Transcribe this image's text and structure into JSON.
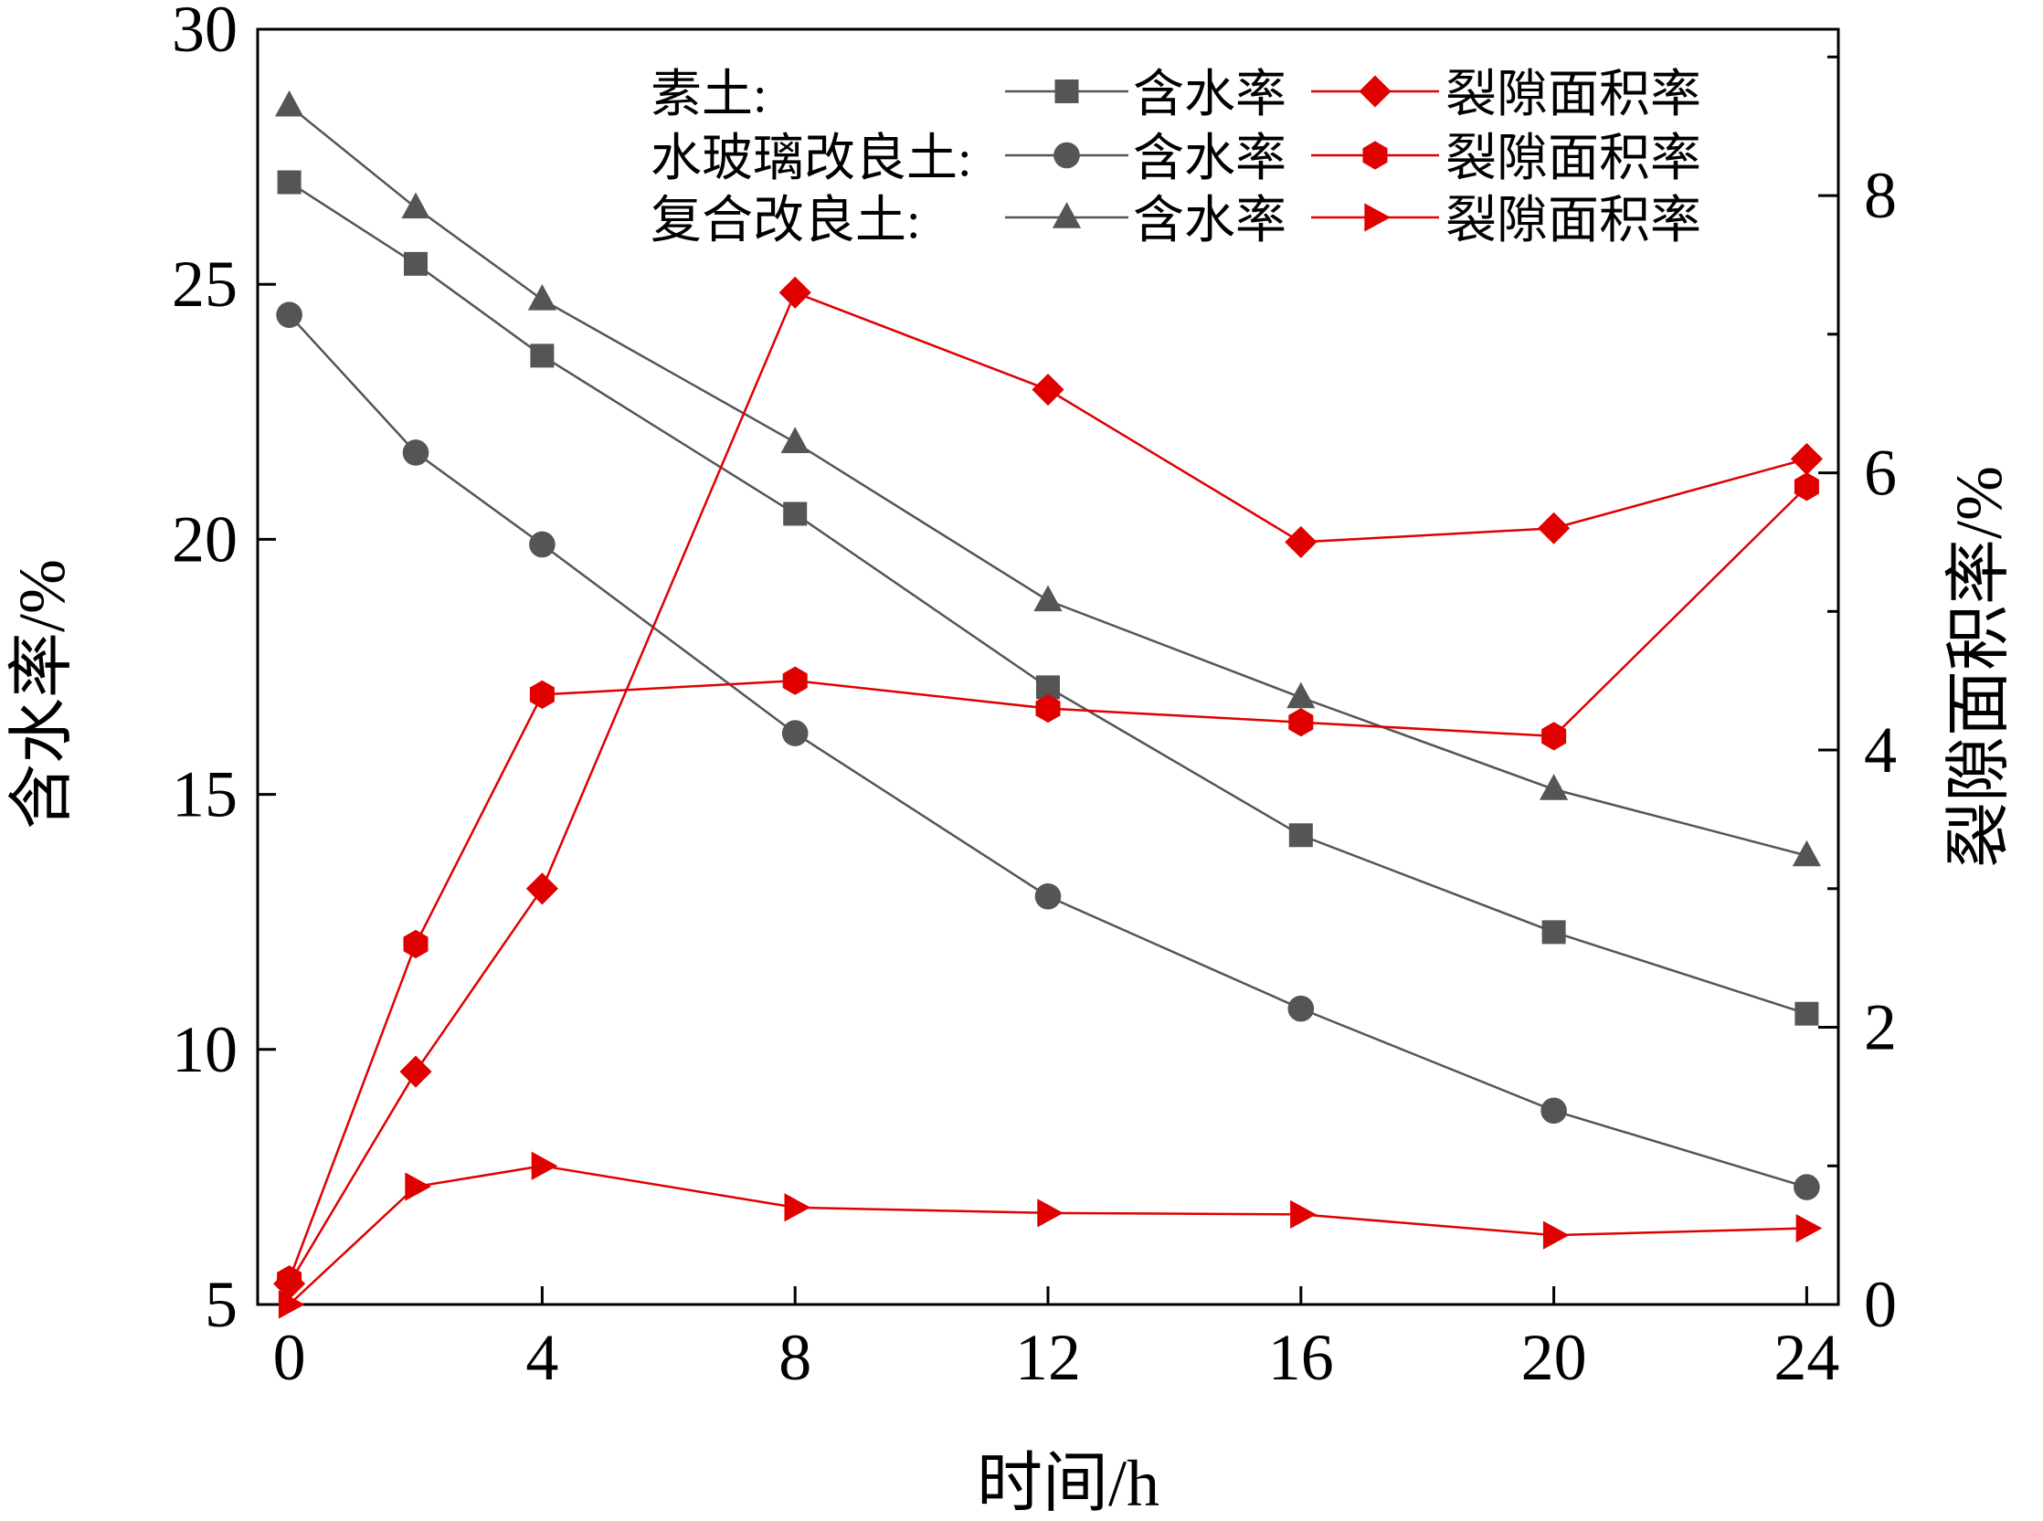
{
  "chart_data": {
    "type": "line",
    "title": "",
    "xlabel": "时间/h",
    "ylabel_left": "含水率/%",
    "ylabel_right": "裂隙面积率/%",
    "x": [
      0,
      2,
      4,
      8,
      12,
      16,
      20,
      24
    ],
    "x_ticks": [
      0,
      4,
      8,
      12,
      16,
      20,
      24
    ],
    "xlim": [
      -0.5,
      24.5
    ],
    "ylim_left": [
      5,
      30
    ],
    "y_left_ticks": [
      5,
      10,
      15,
      20,
      25,
      30
    ],
    "ylim_right": [
      0,
      9.2
    ],
    "y_right_ticks": [
      0,
      2,
      4,
      6,
      8
    ],
    "grid": false,
    "legend_position": "top-right",
    "legend_groups": [
      {
        "label": "素土:",
        "series": [
          "s1",
          "s4"
        ]
      },
      {
        "label": "水玻璃改良土:",
        "series": [
          "s2",
          "s5"
        ]
      },
      {
        "label": "复合改良土:",
        "series": [
          "s3",
          "s6"
        ]
      }
    ],
    "series": [
      {
        "id": "s1",
        "name": "含水率",
        "group": "素土",
        "axis": "left",
        "marker": "square",
        "color": "#555555",
        "values": [
          27.0,
          25.4,
          23.6,
          20.5,
          17.1,
          14.2,
          12.3,
          10.7
        ]
      },
      {
        "id": "s2",
        "name": "含水率",
        "group": "水玻璃改良土",
        "axis": "left",
        "marker": "circle",
        "color": "#555555",
        "values": [
          24.4,
          21.7,
          19.9,
          16.2,
          13.0,
          10.8,
          8.8,
          7.3
        ]
      },
      {
        "id": "s3",
        "name": "含水率",
        "group": "复合改良土",
        "axis": "left",
        "marker": "triangle",
        "color": "#555555",
        "values": [
          28.5,
          26.5,
          24.7,
          21.9,
          18.8,
          16.9,
          15.1,
          13.8
        ]
      },
      {
        "id": "s4",
        "name": "裂隙面积率",
        "group": "素土",
        "axis": "right",
        "marker": "diamond",
        "color": "#e00000",
        "values": [
          0.15,
          1.68,
          3.0,
          7.3,
          6.6,
          5.5,
          5.6,
          6.1
        ]
      },
      {
        "id": "s5",
        "name": "裂隙面积率",
        "group": "水玻璃改良土",
        "axis": "right",
        "marker": "hexagon",
        "color": "#e00000",
        "values": [
          0.18,
          2.6,
          4.4,
          4.5,
          4.3,
          4.2,
          4.1,
          5.9
        ]
      },
      {
        "id": "s6",
        "name": "裂隙面积率",
        "group": "复合改良土",
        "axis": "right",
        "marker": "triangle-right",
        "color": "#e00000",
        "values": [
          0.0,
          0.85,
          1.0,
          0.7,
          0.66,
          0.65,
          0.5,
          0.55
        ]
      }
    ]
  }
}
